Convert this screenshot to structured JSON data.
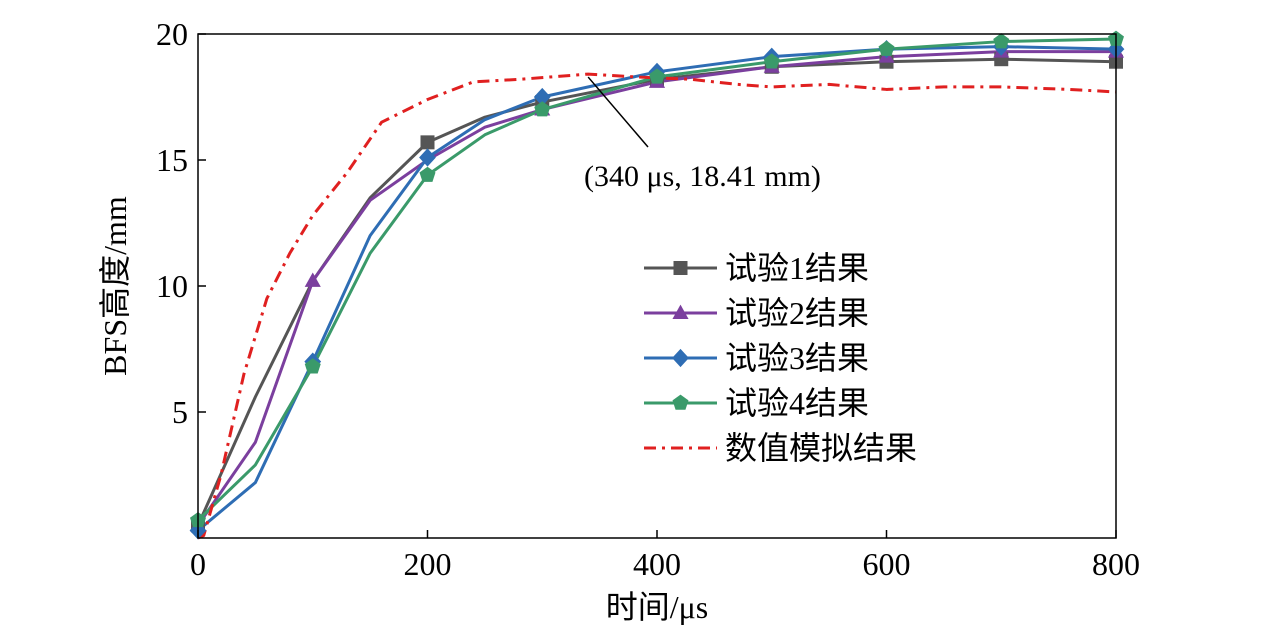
{
  "chart_data": {
    "type": "line",
    "xlabel": "时间/μs",
    "ylabel": "BFS高度/mm",
    "xlim": [
      0,
      800
    ],
    "ylim": [
      0,
      20
    ],
    "xticks": [
      0,
      200,
      400,
      600,
      800
    ],
    "yticks": [
      5,
      10,
      15,
      20
    ],
    "grid": false,
    "legend_position": "center-right",
    "series": [
      {
        "name": "试验1结果",
        "color": "#555555",
        "marker": "square",
        "dash": "solid",
        "x": [
          0,
          50,
          100,
          150,
          200,
          250,
          300,
          400,
          500,
          600,
          700,
          800
        ],
        "y": [
          0.5,
          5.6,
          10.2,
          13.5,
          15.7,
          16.7,
          17.3,
          18.2,
          18.7,
          18.9,
          19.0,
          18.9
        ],
        "markers_at": [
          0,
          200,
          300,
          400,
          500,
          600,
          700,
          800
        ]
      },
      {
        "name": "试验2结果",
        "color": "#7B3F9E",
        "marker": "triangle",
        "dash": "solid",
        "x": [
          0,
          50,
          100,
          150,
          200,
          250,
          300,
          400,
          500,
          600,
          700,
          800
        ],
        "y": [
          0.5,
          3.8,
          10.2,
          13.4,
          15.0,
          16.3,
          17.0,
          18.1,
          18.7,
          19.1,
          19.3,
          19.3
        ],
        "markers_at": [
          0,
          100,
          300,
          400,
          500,
          600,
          700,
          800
        ]
      },
      {
        "name": "试验3结果",
        "color": "#2E6DB4",
        "marker": "diamond",
        "dash": "solid",
        "x": [
          0,
          50,
          100,
          150,
          200,
          250,
          300,
          400,
          500,
          600,
          700,
          800
        ],
        "y": [
          0.3,
          2.2,
          7.0,
          12.0,
          15.1,
          16.6,
          17.5,
          18.5,
          19.1,
          19.4,
          19.5,
          19.4
        ],
        "markers_at": [
          0,
          100,
          200,
          300,
          400,
          500,
          600,
          700,
          800
        ]
      },
      {
        "name": "试验4结果",
        "color": "#3A9A6A",
        "marker": "pentagon",
        "dash": "solid",
        "x": [
          0,
          50,
          100,
          150,
          200,
          250,
          300,
          400,
          500,
          600,
          700,
          800
        ],
        "y": [
          0.7,
          2.9,
          6.8,
          11.3,
          14.4,
          16.0,
          17.0,
          18.3,
          18.9,
          19.4,
          19.7,
          19.8
        ],
        "markers_at": [
          0,
          100,
          200,
          300,
          400,
          500,
          600,
          700,
          800
        ]
      },
      {
        "name": "数值模拟结果",
        "color": "#E02020",
        "marker": "none",
        "dash": "dashdot",
        "x": [
          0,
          5,
          20,
          40,
          60,
          80,
          100,
          130,
          160,
          200,
          240,
          280,
          340,
          380,
          430,
          470,
          500,
          550,
          600,
          650,
          700,
          760,
          800
        ],
        "y": [
          0.0,
          0.1,
          2.5,
          6.5,
          9.5,
          11.3,
          12.8,
          14.5,
          16.5,
          17.4,
          18.1,
          18.2,
          18.41,
          18.3,
          18.2,
          18.0,
          17.9,
          18.0,
          17.8,
          17.9,
          17.9,
          17.8,
          17.7
        ]
      }
    ],
    "annotations": [
      {
        "text": "(340 μs, 18.41 mm)",
        "point": [
          340,
          18.41
        ]
      }
    ]
  }
}
